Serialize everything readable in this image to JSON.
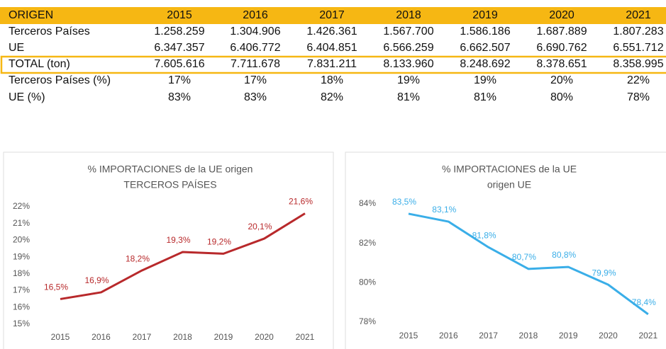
{
  "table": {
    "header": [
      "ORIGEN",
      "2015",
      "2016",
      "2017",
      "2018",
      "2019",
      "2020",
      "2021"
    ],
    "rows": [
      [
        "Terceros Países",
        "1.258.259",
        "1.304.906",
        "1.426.361",
        "1.567.700",
        "1.586.186",
        "1.687.889",
        "1.807.283"
      ],
      [
        "UE",
        "6.347.357",
        "6.406.772",
        "6.404.851",
        "6.566.259",
        "6.662.507",
        "6.690.762",
        "6.551.712"
      ],
      [
        "TOTAL (ton)",
        "7.605.616",
        "7.711.678",
        "7.831.211",
        "8.133.960",
        "8.248.692",
        "8.378.651",
        "8.358.995"
      ],
      [
        "Terceros Países (%)",
        "17%",
        "17%",
        "18%",
        "19%",
        "19%",
        "20%",
        "22%"
      ],
      [
        "UE (%)",
        "83%",
        "83%",
        "82%",
        "81%",
        "81%",
        "80%",
        "78%"
      ]
    ]
  },
  "chart_data": [
    {
      "type": "line",
      "title": [
        "% IMPORTACIONES de la UE origen",
        "TERCEROS PAÍSES"
      ],
      "categories": [
        "2015",
        "2016",
        "2017",
        "2018",
        "2019",
        "2020",
        "2021"
      ],
      "series": [
        {
          "color": "#b8292b",
          "values": [
            16.5,
            16.9,
            18.2,
            19.3,
            19.2,
            20.1,
            21.6
          ],
          "value_labels": [
            "16,5%",
            "16,9%",
            "18,2%",
            "19,3%",
            "19,2%",
            "20,1%",
            "21,6%"
          ]
        }
      ],
      "ylim": [
        15,
        22
      ],
      "yticks": [
        {
          "value": 15,
          "label": "15%"
        },
        {
          "value": 16,
          "label": "16%"
        },
        {
          "value": 17,
          "label": "17%"
        },
        {
          "value": 18,
          "label": "18%"
        },
        {
          "value": 19,
          "label": "19%"
        },
        {
          "value": 20,
          "label": "20%"
        },
        {
          "value": 21,
          "label": "21%"
        },
        {
          "value": 22,
          "label": "22%"
        }
      ]
    },
    {
      "type": "line",
      "title": [
        "% IMPORTACIONES de la UE",
        "origen  UE"
      ],
      "categories": [
        "2015",
        "2016",
        "2017",
        "2018",
        "2019",
        "2020",
        "2021"
      ],
      "series": [
        {
          "color": "#3aaee8",
          "values": [
            83.5,
            83.1,
            81.8,
            80.7,
            80.8,
            79.9,
            78.4
          ],
          "value_labels": [
            "83,5%",
            "83,1%",
            "81,8%",
            "80,7%",
            "80,8%",
            "79,9%",
            "78,4%"
          ]
        }
      ],
      "ylim": [
        78,
        84
      ],
      "yticks": [
        {
          "value": 78,
          "label": "78%"
        },
        {
          "value": 80,
          "label": "80%"
        },
        {
          "value": 82,
          "label": "82%"
        },
        {
          "value": 84,
          "label": "84%"
        }
      ]
    }
  ]
}
